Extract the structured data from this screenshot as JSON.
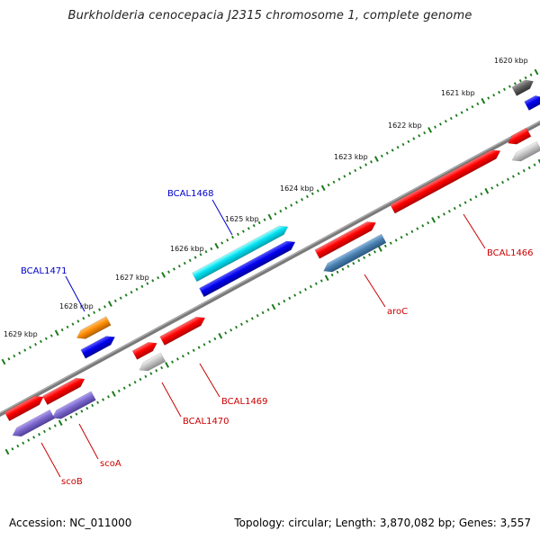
{
  "title": "Burkholderia cenocepacia J2315 chromosome 1, complete genome",
  "footer": {
    "accession": "Accession: NC_011000",
    "summary": "Topology: circular; Length: 3,870,082 bp; Genes: 3,557"
  },
  "kbp_labels": [
    "1620 kbp",
    "1621 kbp",
    "1622 kbp",
    "1623 kbp",
    "1624 kbp",
    "1625 kbp",
    "1626 kbp",
    "1627 kbp",
    "1628 kbp",
    "1629 kbp"
  ],
  "gene_labels": [
    {
      "text": "BCAL1468",
      "color": "#0000cc"
    },
    {
      "text": "BCAL1471",
      "color": "#0000cc"
    },
    {
      "text": "BCAL1466",
      "color": "#cc0000"
    },
    {
      "text": "aroC",
      "color": "#cc0000"
    },
    {
      "text": "BCAL1469",
      "color": "#cc0000"
    },
    {
      "text": "BCAL1470",
      "color": "#cc0000"
    },
    {
      "text": "scoA",
      "color": "#cc0000"
    },
    {
      "text": "scoB",
      "color": "#cc0000"
    }
  ],
  "colors": {
    "backbone": "#808080",
    "tick": "#1a7a1a",
    "red": "#ff0000",
    "blue": "#0000ee",
    "cyan": "#00d8e8",
    "orange": "#ff8c00",
    "steelblue": "#4a80b0",
    "purple": "#7b68cc",
    "gray": "#c0c0c0",
    "darkgray": "#606060"
  }
}
